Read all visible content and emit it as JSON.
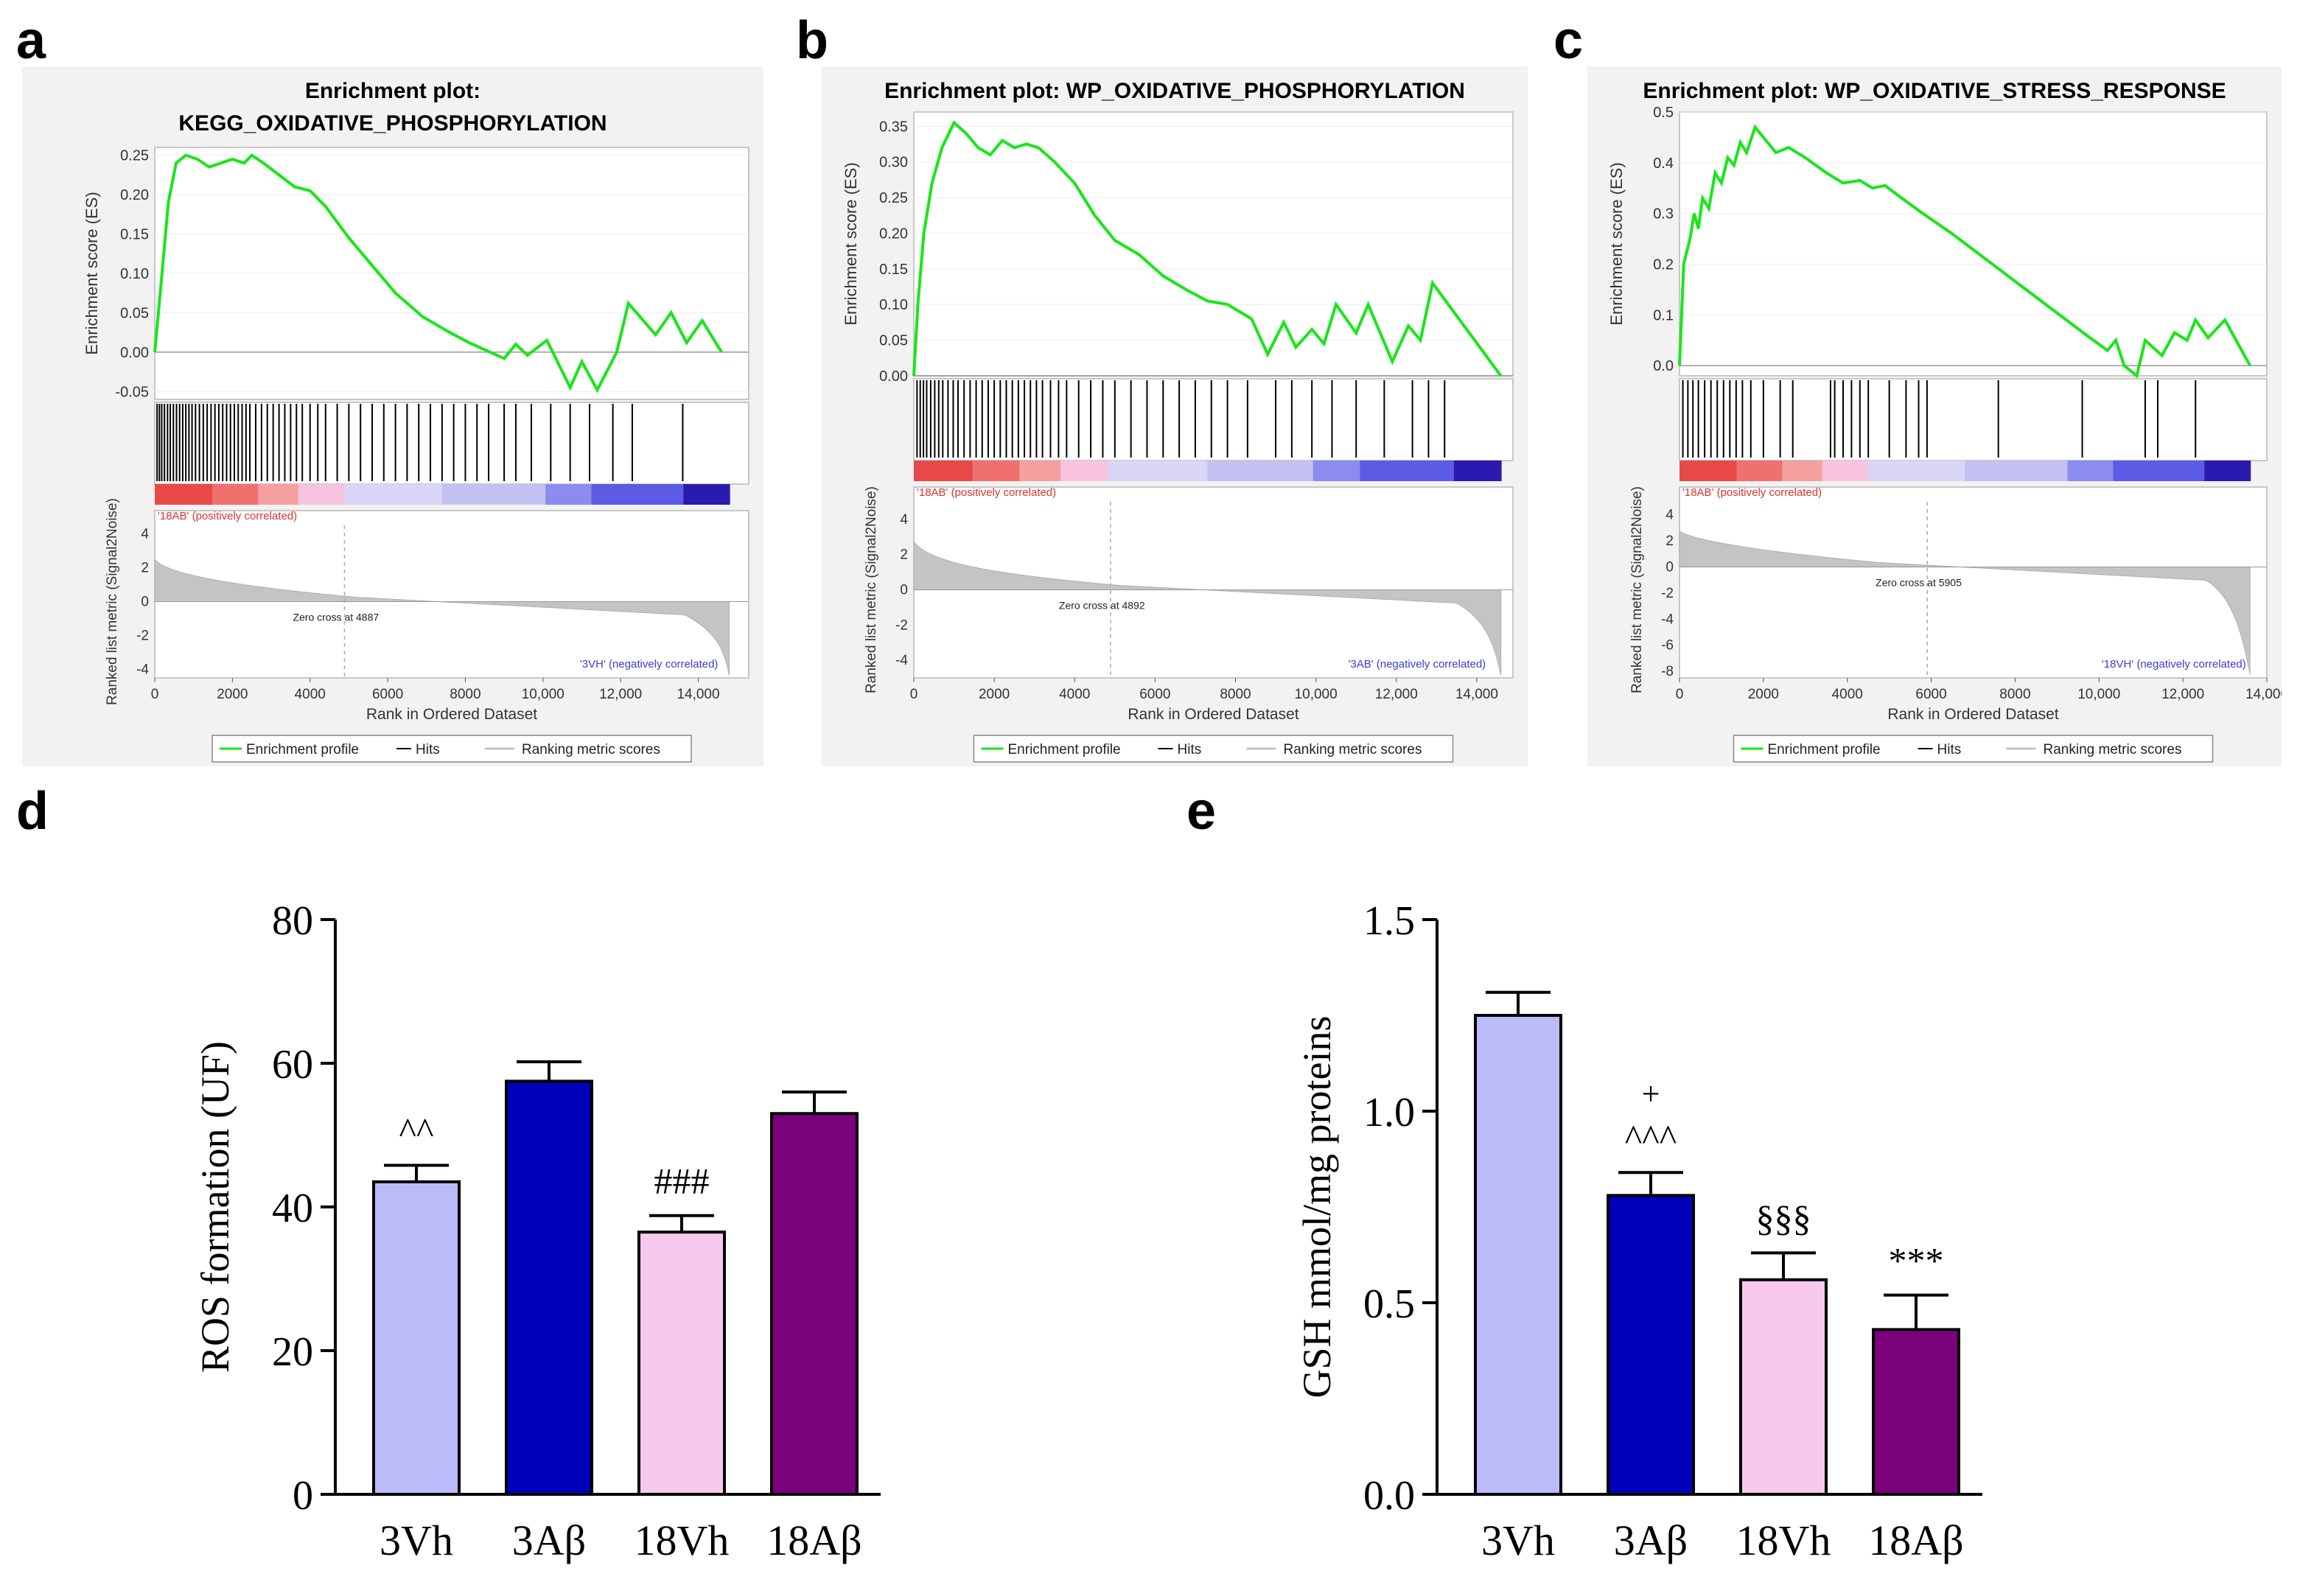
{
  "panels": {
    "a": "a",
    "b": "b",
    "c": "c",
    "d": "d",
    "e": "e"
  },
  "chart_data": [
    {
      "type": "line",
      "panel": "a",
      "title_line1": "Enrichment plot:",
      "title_line2": "KEGG_OXIDATIVE_PHOSPHORYLATION",
      "ylabel_es": "Enrichment score (ES)",
      "ylabel_metric": "Ranked list metric (Signal2Noise)",
      "xlabel": "Rank in Ordered Dataset",
      "es_yticks": [
        "0.25",
        "0.20",
        "0.15",
        "0.10",
        "0.05",
        "0.00",
        "-0.05"
      ],
      "es_ylim": [
        -0.06,
        0.26
      ],
      "metric_yticks": [
        "4",
        "2",
        "0",
        "-2",
        "-4"
      ],
      "metric_ylim": [
        -4.5,
        4.5
      ],
      "xticks": [
        "0",
        "2000",
        "4000",
        "6000",
        "8000",
        "10,000",
        "12,000",
        "14,000"
      ],
      "xlim": [
        0,
        15300
      ],
      "x_max": 14800,
      "es_curve": [
        [
          0,
          0
        ],
        [
          150,
          0.08
        ],
        [
          350,
          0.19
        ],
        [
          550,
          0.24
        ],
        [
          800,
          0.25
        ],
        [
          1100,
          0.245
        ],
        [
          1400,
          0.235
        ],
        [
          1700,
          0.24
        ],
        [
          2000,
          0.245
        ],
        [
          2300,
          0.24
        ],
        [
          2500,
          0.25
        ],
        [
          2800,
          0.24
        ],
        [
          3200,
          0.225
        ],
        [
          3600,
          0.21
        ],
        [
          4000,
          0.205
        ],
        [
          4400,
          0.185
        ],
        [
          5000,
          0.145
        ],
        [
          5600,
          0.11
        ],
        [
          6200,
          0.075
        ],
        [
          6900,
          0.045
        ],
        [
          7600,
          0.025
        ],
        [
          8100,
          0.012
        ],
        [
          8500,
          0.003
        ],
        [
          9000,
          -0.008
        ],
        [
          9300,
          0.01
        ],
        [
          9600,
          -0.004
        ],
        [
          10100,
          0.015
        ],
        [
          10700,
          -0.045
        ],
        [
          11000,
          -0.012
        ],
        [
          11400,
          -0.048
        ],
        [
          11900,
          0.0
        ],
        [
          12200,
          0.062
        ],
        [
          12900,
          0.022
        ],
        [
          13300,
          0.05
        ],
        [
          13700,
          0.012
        ],
        [
          14100,
          0.04
        ],
        [
          14600,
          0.0
        ]
      ],
      "hit_ranks": [
        60,
        120,
        180,
        250,
        330,
        400,
        480,
        560,
        640,
        720,
        800,
        880,
        960,
        1050,
        1150,
        1250,
        1350,
        1450,
        1550,
        1650,
        1750,
        1850,
        1950,
        2050,
        2150,
        2250,
        2350,
        2450,
        2600,
        2750,
        2900,
        3050,
        3200,
        3350,
        3500,
        3650,
        3800,
        4000,
        4200,
        4400,
        4700,
        5000,
        5300,
        5600,
        5900,
        6200,
        6500,
        6800,
        7100,
        7400,
        7700,
        8000,
        8300,
        8600,
        9000,
        9300,
        9700,
        10200,
        10700,
        11200,
        11800,
        12300,
        13600
      ],
      "zero_cross_rank": 4887,
      "zero_cross_label": "Zero cross at 4887",
      "pos_label": "'18AB' (positively correlated)",
      "neg_label": "'3VH' (negatively correlated)",
      "legend": [
        "Enrichment profile",
        "Hits",
        "Ranking metric scores"
      ]
    },
    {
      "type": "line",
      "panel": "b",
      "title_line1": "Enrichment plot: WP_OXIDATIVE_PHOSPHORYLATION",
      "ylabel_es": "Enrichment score (ES)",
      "ylabel_metric": "Ranked list metric (Signal2Noise)",
      "xlabel": "Rank in Ordered Dataset",
      "es_yticks": [
        "0.35",
        "0.30",
        "0.25",
        "0.20",
        "0.15",
        "0.10",
        "0.05",
        "0.00"
      ],
      "es_ylim": [
        0,
        0.37
      ],
      "metric_yticks": [
        "4",
        "2",
        "0",
        "-2",
        "-4"
      ],
      "metric_ylim": [
        -5,
        5
      ],
      "xticks": [
        "0",
        "2000",
        "4000",
        "6000",
        "8000",
        "10,000",
        "12,000",
        "14,000"
      ],
      "xlim": [
        0,
        14900
      ],
      "x_max": 14600,
      "es_curve": [
        [
          0,
          0
        ],
        [
          100,
          0.1
        ],
        [
          250,
          0.2
        ],
        [
          450,
          0.27
        ],
        [
          700,
          0.32
        ],
        [
          1000,
          0.355
        ],
        [
          1300,
          0.34
        ],
        [
          1600,
          0.32
        ],
        [
          1900,
          0.31
        ],
        [
          2200,
          0.33
        ],
        [
          2500,
          0.32
        ],
        [
          2800,
          0.325
        ],
        [
          3100,
          0.32
        ],
        [
          3500,
          0.3
        ],
        [
          4000,
          0.27
        ],
        [
          4500,
          0.225
        ],
        [
          5000,
          0.19
        ],
        [
          5600,
          0.17
        ],
        [
          6200,
          0.14
        ],
        [
          6800,
          0.12
        ],
        [
          7300,
          0.105
        ],
        [
          7800,
          0.1
        ],
        [
          8400,
          0.08
        ],
        [
          8800,
          0.03
        ],
        [
          9200,
          0.075
        ],
        [
          9500,
          0.04
        ],
        [
          9900,
          0.065
        ],
        [
          10200,
          0.045
        ],
        [
          10500,
          0.1
        ],
        [
          11000,
          0.06
        ],
        [
          11300,
          0.1
        ],
        [
          11900,
          0.02
        ],
        [
          12300,
          0.07
        ],
        [
          12600,
          0.05
        ],
        [
          12900,
          0.13
        ],
        [
          14600,
          0.0
        ]
      ],
      "hit_ranks": [
        80,
        160,
        240,
        320,
        420,
        520,
        620,
        720,
        850,
        980,
        1100,
        1250,
        1400,
        1550,
        1700,
        1850,
        2000,
        2150,
        2300,
        2450,
        2600,
        2750,
        2900,
        3050,
        3200,
        3400,
        3600,
        3800,
        4100,
        4400,
        4700,
        5000,
        5400,
        5800,
        6200,
        6600,
        7000,
        7400,
        7800,
        8300,
        9000,
        9400,
        9900,
        10400,
        11000,
        11700,
        12400,
        12800,
        13200
      ],
      "zero_cross_rank": 4892,
      "zero_cross_label": "Zero cross at 4892",
      "pos_label": "'18AB' (positively correlated)",
      "neg_label": "'3AB' (negatively correlated)",
      "legend": [
        "Enrichment profile",
        "Hits",
        "Ranking metric scores"
      ]
    },
    {
      "type": "line",
      "panel": "c",
      "title_line1": "Enrichment plot: WP_OXIDATIVE_STRESS_RESPONSE",
      "ylabel_es": "Enrichment score (ES)",
      "ylabel_metric": "Ranked list metric (Signal2Noise)",
      "xlabel": "Rank in Ordered Dataset",
      "es_yticks": [
        "0.5",
        "0.4",
        "0.3",
        "0.2",
        "0.1",
        "0.0"
      ],
      "es_ylim": [
        -0.02,
        0.5
      ],
      "metric_yticks": [
        "4",
        "2",
        "0",
        "-2",
        "-4",
        "-6",
        "-8"
      ],
      "metric_ylim": [
        -8.5,
        5
      ],
      "xticks": [
        "0",
        "2000",
        "4000",
        "6000",
        "8000",
        "10,000",
        "12,000",
        "14,000"
      ],
      "xlim": [
        0,
        14000
      ],
      "x_max": 13600,
      "es_curve": [
        [
          0,
          0
        ],
        [
          100,
          0.2
        ],
        [
          250,
          0.25
        ],
        [
          350,
          0.3
        ],
        [
          450,
          0.27
        ],
        [
          550,
          0.33
        ],
        [
          700,
          0.31
        ],
        [
          850,
          0.38
        ],
        [
          1000,
          0.36
        ],
        [
          1150,
          0.41
        ],
        [
          1300,
          0.395
        ],
        [
          1450,
          0.44
        ],
        [
          1600,
          0.42
        ],
        [
          1800,
          0.47
        ],
        [
          2000,
          0.45
        ],
        [
          2300,
          0.42
        ],
        [
          2600,
          0.43
        ],
        [
          3000,
          0.41
        ],
        [
          3500,
          0.38
        ],
        [
          3900,
          0.36
        ],
        [
          4300,
          0.365
        ],
        [
          4600,
          0.35
        ],
        [
          4900,
          0.355
        ],
        [
          5300,
          0.33
        ],
        [
          5800,
          0.3
        ],
        [
          6500,
          0.26
        ],
        [
          7300,
          0.21
        ],
        [
          8100,
          0.16
        ],
        [
          8900,
          0.11
        ],
        [
          9700,
          0.06
        ],
        [
          10200,
          0.03
        ],
        [
          10400,
          0.05
        ],
        [
          10600,
          0.0
        ],
        [
          10900,
          -0.02
        ],
        [
          11100,
          0.05
        ],
        [
          11500,
          0.02
        ],
        [
          11800,
          0.065
        ],
        [
          12100,
          0.05
        ],
        [
          12300,
          0.09
        ],
        [
          12600,
          0.055
        ],
        [
          13000,
          0.09
        ],
        [
          13600,
          0.0
        ]
      ],
      "hit_ranks": [
        80,
        200,
        320,
        450,
        600,
        750,
        900,
        1050,
        1200,
        1350,
        1500,
        1700,
        2000,
        2400,
        2700,
        3600,
        3700,
        3900,
        4100,
        4300,
        4500,
        5000,
        5400,
        5700,
        5900,
        7600,
        9600,
        11100,
        11400,
        12300
      ],
      "zero_cross_rank": 5905,
      "zero_cross_label": "Zero cross at 5905",
      "pos_label": "'18AB' (positively correlated)",
      "neg_label": "'18VH' (negatively correlated)",
      "legend": [
        "Enrichment profile",
        "Hits",
        "Ranking metric scores"
      ]
    },
    {
      "type": "bar",
      "panel": "d",
      "categories": [
        "3Vh",
        "3Aβ",
        "18Vh",
        "18Aβ"
      ],
      "values": [
        43.5,
        57.5,
        36.5,
        53
      ],
      "errors": [
        2.3,
        2.7,
        2.3,
        3.0
      ],
      "colors": [
        "#bbbbf9",
        "#0000bb",
        "#f7c9ec",
        "#7b007b"
      ],
      "annotations": [
        "^^",
        "",
        "###",
        ""
      ],
      "ylabel": "ROS formation (UF)",
      "ylim": [
        0,
        80
      ],
      "yticks": [
        "0",
        "20",
        "40",
        "60",
        "80"
      ],
      "ytick_values": [
        0,
        20,
        40,
        60,
        80
      ]
    },
    {
      "type": "bar",
      "panel": "e",
      "categories": [
        "3Vh",
        "3Aβ",
        "18Vh",
        "18Aβ"
      ],
      "values": [
        1.25,
        0.78,
        0.56,
        0.43
      ],
      "errors": [
        0.06,
        0.06,
        0.07,
        0.09
      ],
      "colors": [
        "#bbbbf9",
        "#0000bb",
        "#f7c9ec",
        "#7b007b"
      ],
      "annotations": [
        "",
        "^^^",
        "§§§",
        "***"
      ],
      "annotations_top": [
        "",
        "+",
        "",
        ""
      ],
      "ylabel": "GSH mmol/mg proteins",
      "ylim": [
        0,
        1.5
      ],
      "yticks": [
        "0.0",
        "0.5",
        "1.0",
        "1.5"
      ],
      "ytick_values": [
        0,
        0.5,
        1.0,
        1.5
      ]
    }
  ]
}
